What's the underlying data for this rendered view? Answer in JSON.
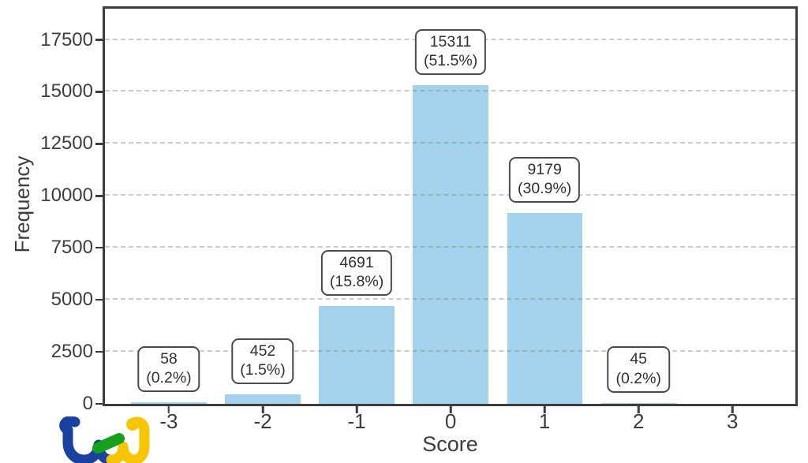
{
  "chart_data": {
    "type": "bar",
    "title": "",
    "xlabel": "Score",
    "ylabel": "Frequency",
    "categories": [
      -3,
      -2,
      -1,
      0,
      1,
      2
    ],
    "values": [
      58,
      452,
      4691,
      15311,
      9179,
      45
    ],
    "bars": [
      {
        "x": -3,
        "value": 58,
        "label": "58",
        "pct": "(0.2%)"
      },
      {
        "x": -2,
        "value": 452,
        "label": "452",
        "pct": "(1.5%)"
      },
      {
        "x": -1,
        "value": 4691,
        "label": "4691",
        "pct": "(15.8%)"
      },
      {
        "x": 0,
        "value": 15311,
        "label": "15311",
        "pct": "(51.5%)"
      },
      {
        "x": 1,
        "value": 9179,
        "label": "9179",
        "pct": "(30.9%)"
      },
      {
        "x": 2,
        "value": 45,
        "label": "45",
        "pct": "(0.2%)"
      }
    ],
    "xticks": [
      "-3",
      "-2",
      "-1",
      "0",
      "1",
      "2",
      "3"
    ],
    "xtick_values": [
      -3,
      -2,
      -1,
      0,
      1,
      2,
      3
    ],
    "yticks": [
      "0",
      "2500",
      "5000",
      "7500",
      "10000",
      "12500",
      "15000",
      "17500"
    ],
    "ytick_values": [
      0,
      2500,
      5000,
      7500,
      10000,
      12500,
      15000,
      17500
    ],
    "xlim": [
      -3.68,
      3.67
    ],
    "ylim": [
      0,
      19000
    ],
    "bar_width": 0.8,
    "bar_color": "#a3d3ec",
    "grid": "horizontal dashed gridlines at each y tick",
    "legend": "none",
    "annotation_style": "rounded box above each bar with count and percent"
  },
  "branding": {
    "logo_text": "tej",
    "logo_colors": {
      "blue": "#1a41a0",
      "green": "#16a11d",
      "yellow": "#f8c504"
    }
  }
}
